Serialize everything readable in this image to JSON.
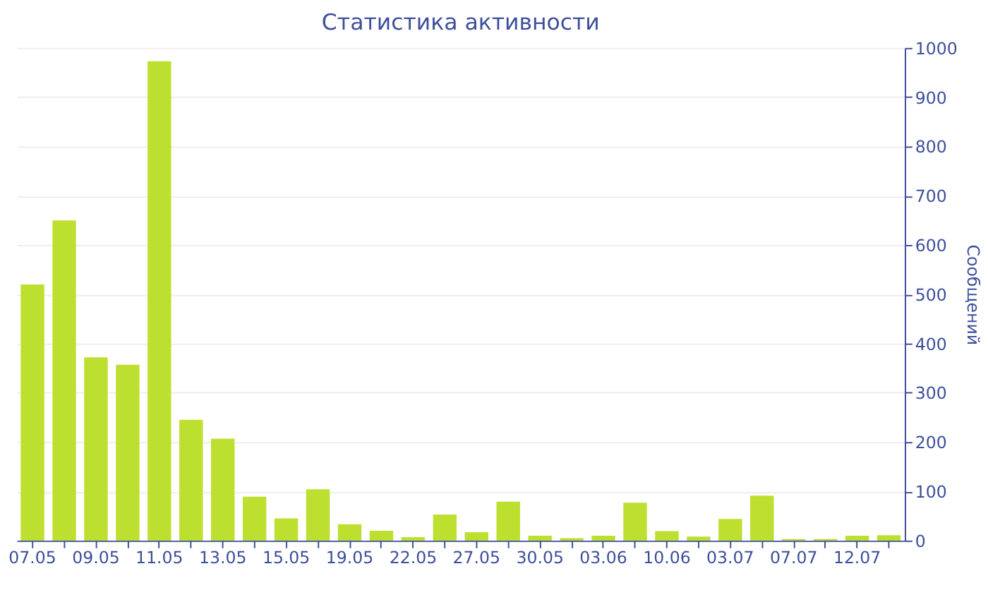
{
  "chart_data": {
    "type": "bar",
    "title": "Статистика активности",
    "ylabel": "Сообщений",
    "categories": [
      "07.05",
      null,
      "09.05",
      null,
      "11.05",
      null,
      "13.05",
      null,
      "15.05",
      null,
      "19.05",
      null,
      "22.05",
      null,
      "27.05",
      null,
      "30.05",
      null,
      "03.06",
      null,
      "10.06",
      null,
      "03.07",
      null,
      "07.07",
      null,
      "12.07",
      null
    ],
    "values": [
      520,
      650,
      372,
      357,
      973,
      245,
      207,
      89,
      45,
      104,
      33,
      20,
      7,
      53,
      17,
      79,
      10,
      5,
      10,
      77,
      19,
      8,
      44,
      91,
      3,
      3,
      10,
      11
    ],
    "color": "#bde030",
    "ylim": [
      0,
      1000
    ],
    "yticks": [
      0,
      100,
      200,
      300,
      400,
      500,
      600,
      700,
      800,
      900,
      1000
    ],
    "grid": "y"
  }
}
